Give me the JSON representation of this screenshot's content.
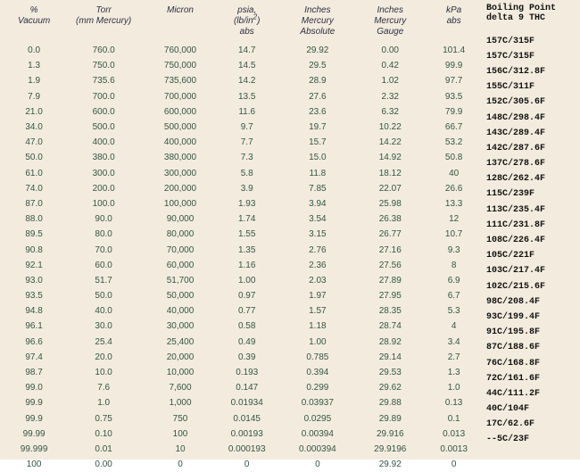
{
  "background_color": "#f3ecde",
  "text_color": "#333344",
  "font_family": "Verdana, Arial, sans-serif",
  "side_font_family": "Courier New, monospace",
  "columns": [
    {
      "key": "pct",
      "label": "%\nVacuum",
      "width": 54
    },
    {
      "key": "torr",
      "label": "Torr\n(mm Mercury)",
      "width": 86
    },
    {
      "key": "micron",
      "label": "Micron",
      "width": 68
    },
    {
      "key": "psia",
      "label": "psia,\n(lb/in²)\nabs",
      "width": 66
    },
    {
      "key": "inhga",
      "label": "Inches\nMercury\nAbsolute",
      "width": 76
    },
    {
      "key": "inhgg",
      "label": "Inches\nMercury\nGauge",
      "width": 70
    },
    {
      "key": "kpa",
      "label": "kPa\nabs",
      "width": 58
    }
  ],
  "side_header": "Boiling Point\ndelta 9 THC",
  "rows": [
    {
      "pct": "0.0",
      "torr": "760.0",
      "micron": "760,000",
      "psia": "14.7",
      "inhga": "29.92",
      "inhgg": "0.00",
      "kpa": "101.4",
      "bp": "157C/315F"
    },
    {
      "pct": "1.3",
      "torr": "750.0",
      "micron": "750,000",
      "psia": "14.5",
      "inhga": "29.5",
      "inhgg": "0.42",
      "kpa": "99.9",
      "bp": "157C/315F"
    },
    {
      "pct": "1.9",
      "torr": "735.6",
      "micron": "735,600",
      "psia": "14.2",
      "inhga": "28.9",
      "inhgg": "1.02",
      "kpa": "97.7",
      "bp": "156C/312.8F"
    },
    {
      "pct": "7.9",
      "torr": "700.0",
      "micron": "700,000",
      "psia": "13.5",
      "inhga": "27.6",
      "inhgg": "2.32",
      "kpa": "93.5",
      "bp": "155C/311F"
    },
    {
      "pct": "21.0",
      "torr": "600.0",
      "micron": "600,000",
      "psia": "11.6",
      "inhga": "23.6",
      "inhgg": "6.32",
      "kpa": "79.9",
      "bp": "152C/305.6F"
    },
    {
      "pct": "34.0",
      "torr": "500.0",
      "micron": "500,000",
      "psia": "9.7",
      "inhga": "19.7",
      "inhgg": "10.22",
      "kpa": "66.7",
      "bp": "148C/298.4F"
    },
    {
      "pct": "47.0",
      "torr": "400.0",
      "micron": "400,000",
      "psia": "7.7",
      "inhga": "15.7",
      "inhgg": "14.22",
      "kpa": "53.2",
      "bp": "143C/289.4F"
    },
    {
      "pct": "50.0",
      "torr": "380.0",
      "micron": "380,000",
      "psia": "7.3",
      "inhga": "15.0",
      "inhgg": "14.92",
      "kpa": "50.8",
      "bp": "142C/287.6F"
    },
    {
      "pct": "61.0",
      "torr": "300.0",
      "micron": "300,000",
      "psia": "5.8",
      "inhga": "11.8",
      "inhgg": "18.12",
      "kpa": "40",
      "bp": "137C/278.6F"
    },
    {
      "pct": "74.0",
      "torr": "200.0",
      "micron": "200,000",
      "psia": "3.9",
      "inhga": "7.85",
      "inhgg": "22.07",
      "kpa": "26.6",
      "bp": "128C/262.4F"
    },
    {
      "pct": "87.0",
      "torr": "100.0",
      "micron": "100,000",
      "psia": "1.93",
      "inhga": "3.94",
      "inhgg": "25.98",
      "kpa": "13.3",
      "bp": "115C/239F"
    },
    {
      "pct": "88.0",
      "torr": "90.0",
      "micron": "90,000",
      "psia": "1.74",
      "inhga": "3.54",
      "inhgg": "26.38",
      "kpa": "12",
      "bp": "113C/235.4F"
    },
    {
      "pct": "89.5",
      "torr": "80.0",
      "micron": "80,000",
      "psia": "1.55",
      "inhga": "3.15",
      "inhgg": "26.77",
      "kpa": "10.7",
      "bp": "111C/231.8F"
    },
    {
      "pct": "90.8",
      "torr": "70.0",
      "micron": "70,000",
      "psia": "1.35",
      "inhga": "2.76",
      "inhgg": "27.16",
      "kpa": "9.3",
      "bp": "108C/226.4F"
    },
    {
      "pct": "92.1",
      "torr": "60.0",
      "micron": "60,000",
      "psia": "1.16",
      "inhga": "2.36",
      "inhgg": "27.56",
      "kpa": "8",
      "bp": "105C/221F"
    },
    {
      "pct": "93.0",
      "torr": "51.7",
      "micron": "51,700",
      "psia": "1.00",
      "inhga": "2.03",
      "inhgg": "27.89",
      "kpa": "6.9",
      "bp": "103C/217.4F"
    },
    {
      "pct": "93.5",
      "torr": "50.0",
      "micron": "50,000",
      "psia": "0.97",
      "inhga": "1.97",
      "inhgg": "27.95",
      "kpa": "6.7",
      "bp": "102C/215.6F"
    },
    {
      "pct": "94.8",
      "torr": "40.0",
      "micron": "40,000",
      "psia": "0.77",
      "inhga": "1.57",
      "inhgg": "28.35",
      "kpa": "5.3",
      "bp": "98C/208.4F"
    },
    {
      "pct": "96.1",
      "torr": "30.0",
      "micron": "30,000",
      "psia": "0.58",
      "inhga": "1.18",
      "inhgg": "28.74",
      "kpa": "4",
      "bp": "93C/199.4F"
    },
    {
      "pct": "96.6",
      "torr": "25.4",
      "micron": "25,400",
      "psia": "0.49",
      "inhga": "1.00",
      "inhgg": "28.92",
      "kpa": "3.4",
      "bp": "91C/195.8F"
    },
    {
      "pct": "97.4",
      "torr": "20.0",
      "micron": "20,000",
      "psia": "0.39",
      "inhga": "0.785",
      "inhgg": "29.14",
      "kpa": "2.7",
      "bp": "87C/188.6F"
    },
    {
      "pct": "98.7",
      "torr": "10.0",
      "micron": "10,000",
      "psia": "0.193",
      "inhga": "0.394",
      "inhgg": "29.53",
      "kpa": "1.3",
      "bp": "76C/168.8F"
    },
    {
      "pct": "99.0",
      "torr": "7.6",
      "micron": "7,600",
      "psia": "0.147",
      "inhga": "0.299",
      "inhgg": "29.62",
      "kpa": "1.0",
      "bp": "72C/161.6F"
    },
    {
      "pct": "99.9",
      "torr": "1.0",
      "micron": "1,000",
      "psia": "0.01934",
      "inhga": "0.03937",
      "inhgg": "29.88",
      "kpa": "0.13",
      "bp": "44C/111.2F"
    },
    {
      "pct": "99.9",
      "torr": "0.75",
      "micron": "750",
      "psia": "0.0145",
      "inhga": "0.0295",
      "inhgg": "29.89",
      "kpa": "0.1",
      "bp": "40C/104F"
    },
    {
      "pct": "99.99",
      "torr": "0.10",
      "micron": "100",
      "psia": "0.00193",
      "inhga": "0.00394",
      "inhgg": "29.916",
      "kpa": "0.013",
      "bp": "17C/62.6F"
    },
    {
      "pct": "99.999",
      "torr": "0.01",
      "micron": "10",
      "psia": "0.000193",
      "inhga": "0.000394",
      "inhgg": "29.9196",
      "kpa": "0.0013",
      "bp": "--5C/23F"
    },
    {
      "pct": "100",
      "torr": "0.00",
      "micron": "0",
      "psia": "0",
      "inhga": "0",
      "inhgg": "29.92",
      "kpa": "0",
      "bp": ""
    }
  ]
}
